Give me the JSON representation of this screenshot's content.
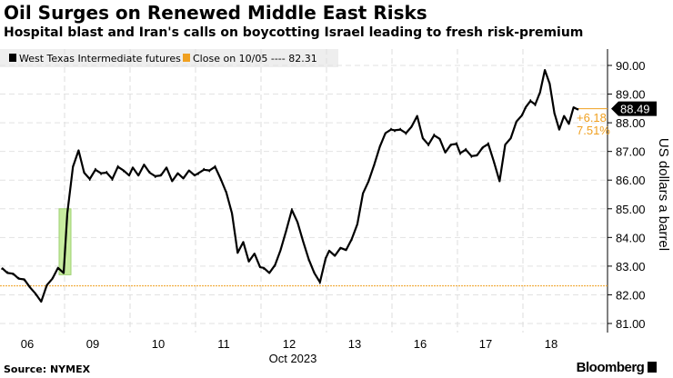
{
  "title": "Oil Surges on Renewed Middle East Risks",
  "subtitle": "Hospital blast and Iran's calls on boycotting Israel leading to fresh risk-premium",
  "source": "Source: NYMEX",
  "brand": "Bloomberg",
  "chart_data": {
    "type": "line",
    "xlabel": "Oct 2023",
    "ylabel": "US dollars a barrel",
    "ylim": [
      81,
      90
    ],
    "yticks": [
      "81.00",
      "82.00",
      "83.00",
      "84.00",
      "85.00",
      "86.00",
      "87.00",
      "88.00",
      "89.00",
      "90.00"
    ],
    "categories": [
      "06",
      "09",
      "10",
      "11",
      "12",
      "13",
      "16",
      "17",
      "18"
    ],
    "grid": true,
    "legend": {
      "placement": "top-left",
      "entries": [
        "West Texas Intermediate futures",
        "Close on 10/05 ---- 82.31"
      ]
    },
    "series": [
      {
        "name": "West Texas Intermediate futures",
        "color": "#000000",
        "values": [
          [
            82.9,
            82.8,
            82.7,
            82.6,
            82.5,
            82.3,
            82.0,
            81.8,
            82.3,
            82.6,
            82.9,
            82.8
          ],
          [
            84.8,
            86.5,
            87.0,
            86.3,
            86.0,
            86.4,
            86.2,
            86.3,
            86.0,
            86.5,
            86.3,
            86.2
          ],
          [
            86.4,
            86.2,
            86.5,
            86.3,
            86.1,
            86.2,
            86.4,
            86.0,
            86.2,
            86.1,
            86.3,
            86.2
          ],
          [
            86.2,
            86.4,
            86.3,
            86.5,
            86.0,
            85.6,
            84.8,
            83.5,
            83.8,
            83.2,
            83.4,
            83.0
          ],
          [
            82.9,
            82.8,
            83.0,
            83.6,
            84.2,
            85.0,
            84.5,
            83.9,
            83.2,
            82.8,
            82.4,
            83.3
          ],
          [
            83.5,
            83.4,
            83.6,
            83.6,
            83.9,
            84.5,
            85.5,
            86.0,
            86.5,
            87.2,
            87.6,
            87.8
          ],
          [
            87.7,
            87.8,
            87.6,
            87.9,
            88.2,
            87.5,
            87.2,
            87.6,
            87.4,
            87.0,
            87.2,
            87.3
          ],
          [
            86.9,
            87.1,
            86.8,
            86.9,
            87.1,
            87.3,
            86.6,
            86.0,
            87.2,
            87.5,
            88.0,
            88.3
          ],
          [
            88.5,
            88.8,
            88.6,
            89.1,
            89.8,
            89.4,
            88.3,
            87.8,
            88.2,
            88.0,
            88.5,
            88.49
          ]
        ]
      }
    ],
    "reference_line": {
      "label": "Close on 10/05",
      "value": 82.31,
      "color": "#f0a020"
    },
    "gap_highlight": {
      "from": 82.7,
      "to": 85.0,
      "color": "#c8eca0"
    },
    "last_value": "88.49",
    "change_abs": "+6.18",
    "change_pct": "7.51%"
  }
}
